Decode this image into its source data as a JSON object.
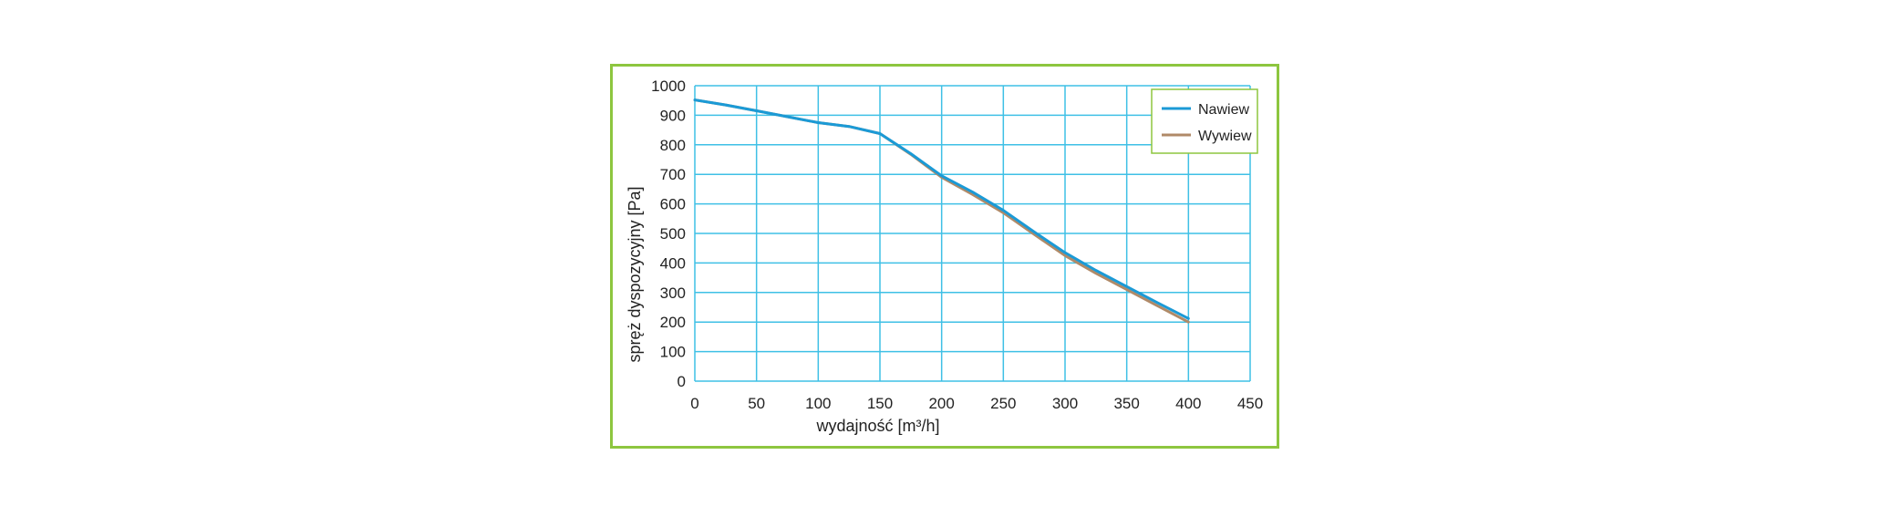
{
  "chart_data": {
    "type": "line",
    "title": "",
    "xlabel": "wydajność  [m³/h]",
    "ylabel": "spręż dyspozycyjny  [Pa]",
    "xlim": [
      0,
      450
    ],
    "ylim": [
      0,
      1000
    ],
    "x_ticks": [
      0,
      50,
      100,
      150,
      200,
      250,
      300,
      350,
      400,
      450
    ],
    "y_ticks": [
      0,
      100,
      200,
      300,
      400,
      500,
      600,
      700,
      800,
      900,
      1000
    ],
    "grid": true,
    "legend_position": "top-right",
    "series": [
      {
        "name": "Nawiew",
        "color": "#1b9ad6",
        "x": [
          0,
          25,
          50,
          75,
          100,
          125,
          150,
          175,
          200,
          225,
          250,
          275,
          300,
          325,
          350,
          375,
          400
        ],
        "y": [
          952,
          935,
          915,
          895,
          875,
          862,
          838,
          770,
          695,
          640,
          578,
          505,
          435,
          375,
          320,
          265,
          212
        ]
      },
      {
        "name": "Wywiew",
        "color": "#b08a68",
        "x": [
          0,
          25,
          50,
          75,
          100,
          125,
          150,
          175,
          200,
          225,
          250,
          275,
          300,
          325,
          350,
          375,
          400
        ],
        "y": [
          952,
          935,
          915,
          895,
          875,
          862,
          838,
          768,
          690,
          632,
          570,
          497,
          425,
          365,
          310,
          255,
          200
        ]
      }
    ]
  },
  "colors": {
    "frame_border": "#8dc63f",
    "grid": "#3fc0e6",
    "legend_border": "#8dc63f"
  }
}
